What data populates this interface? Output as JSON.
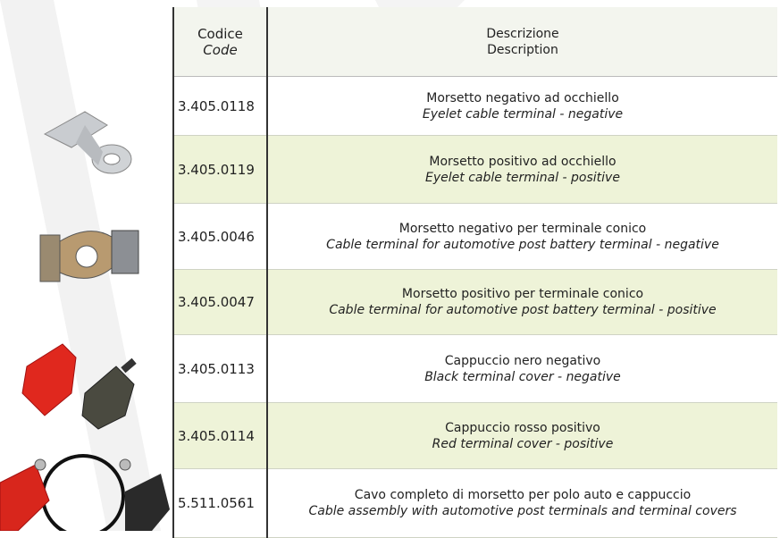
{
  "table": {
    "header": {
      "code_it": "Codice",
      "code_en": "Code",
      "desc_it": "Descrizione",
      "desc_en": "Description"
    },
    "rows": [
      {
        "code": "3.405.0118",
        "desc_it": "Morsetto negativo ad occhiello",
        "desc_en": "Eyelet cable terminal - negative"
      },
      {
        "code": "3.405.0119",
        "desc_it": "Morsetto positivo ad occhiello",
        "desc_en": "Eyelet cable terminal - positive"
      },
      {
        "code": "3.405.0046",
        "desc_it": "Morsetto negativo per terminale conico",
        "desc_en": "Cable terminal for automotive post battery terminal - negative"
      },
      {
        "code": "3.405.0047",
        "desc_it": "Morsetto positivo per terminale conico",
        "desc_en": "Cable terminal for automotive post battery terminal - positive"
      },
      {
        "code": "3.405.0113",
        "desc_it": "Cappuccio nero negativo",
        "desc_en": "Black terminal cover - negative"
      },
      {
        "code": "3.405.0114",
        "desc_it": "Cappuccio rosso positivo",
        "desc_en": "Red terminal cover - positive"
      },
      {
        "code": "5.511.0561",
        "desc_it": "Cavo completo di morsetto per polo auto e cappuccio",
        "desc_en": "Cable assembly with automotive post terminals and terminal covers"
      }
    ]
  }
}
